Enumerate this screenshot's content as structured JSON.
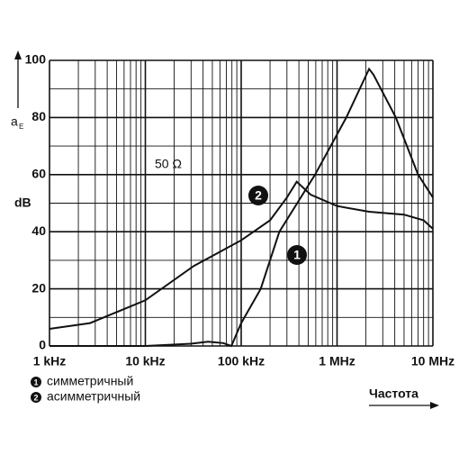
{
  "chart_data": {
    "type": "line",
    "y_label": "a",
    "y_label_sub": "E",
    "y_unit": "dB",
    "x_label": "Частота",
    "annotation": "50 Ω",
    "log_x": true,
    "grid": true,
    "xlim": [
      1000,
      10000000
    ],
    "xticks": [
      {
        "value": 1000,
        "label": "1 kHz"
      },
      {
        "value": 10000,
        "label": "10 kHz"
      },
      {
        "value": 100000,
        "label": "100 kHz"
      },
      {
        "value": 1000000,
        "label": "1 MHz"
      },
      {
        "value": 10000000,
        "label": "10 MHz"
      }
    ],
    "xminor_ticks": [
      2000,
      3000,
      4000,
      5000,
      6000,
      7000,
      8000,
      9000,
      20000,
      30000,
      40000,
      50000,
      60000,
      70000,
      80000,
      90000,
      200000,
      300000,
      400000,
      500000,
      600000,
      700000,
      800000,
      900000,
      2000000,
      3000000,
      4000000,
      5000000,
      6000000,
      7000000,
      8000000,
      9000000
    ],
    "ylim": [
      0,
      100
    ],
    "yticks": [
      0,
      20,
      40,
      60,
      80,
      100
    ],
    "yminor_ticks": [
      10,
      30,
      50,
      70,
      90
    ],
    "series": [
      {
        "name": "симметричный",
        "label": "1",
        "color": "#111111",
        "x": [
          1000,
          10000,
          30000,
          45000,
          65000,
          79000,
          100000,
          160000,
          250000,
          590000,
          1250000,
          2160000,
          2400000,
          4100000,
          7000000,
          10000000
        ],
        "values": [
          0,
          0,
          0.8,
          1.5,
          1,
          0,
          8,
          20,
          40,
          60,
          80,
          97,
          95,
          80,
          60,
          52
        ]
      },
      {
        "name": "асимметричный",
        "label": "2",
        "color": "#111111",
        "x": [
          1000,
          2650,
          10000,
          32000,
          100000,
          200000,
          300000,
          380000,
          530000,
          1000000,
          2160000,
          5000000,
          8000000,
          10000000
        ],
        "values": [
          6,
          8,
          16,
          28,
          37,
          44,
          52,
          57.5,
          53,
          49,
          47,
          46,
          44,
          41
        ]
      }
    ]
  }
}
